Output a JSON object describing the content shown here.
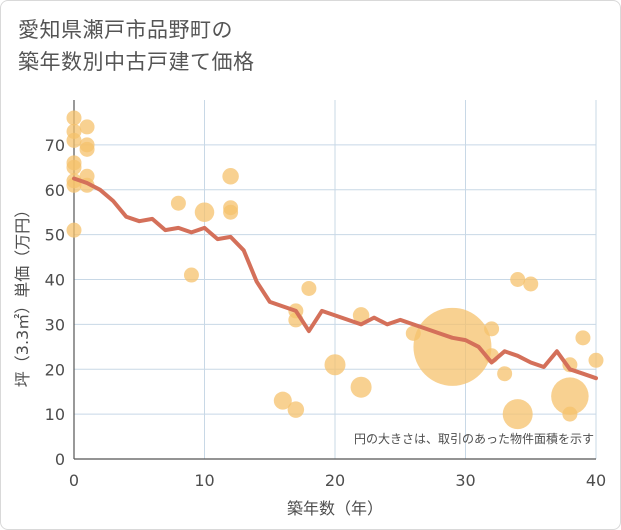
{
  "title_line1": "愛知県瀬戸市品野町の",
  "title_line2": "築年数別中古戸建て価格",
  "chart_data": {
    "type": "scatter",
    "title": "愛知県瀬戸市品野町の築年数別中古戸建て価格",
    "xlabel": "築年数（年）",
    "ylabel": "坪（3.3㎡）単価（万円）",
    "xlim": [
      0,
      40
    ],
    "ylim": [
      0,
      80
    ],
    "xticks": [
      0,
      10,
      20,
      30,
      40
    ],
    "yticks": [
      0,
      10,
      20,
      30,
      40,
      50,
      60,
      70
    ],
    "grid": true,
    "note": "円の大きさは、取引のあった物件面積を示す",
    "colors": {
      "bubble": "#f5c16c",
      "line": "#d4705a",
      "grid": "#c8d8e6"
    },
    "bubbles": [
      {
        "x": 0,
        "y": 76,
        "s": 1
      },
      {
        "x": 0,
        "y": 73,
        "s": 1
      },
      {
        "x": 0,
        "y": 71,
        "s": 1
      },
      {
        "x": 0,
        "y": 66,
        "s": 1
      },
      {
        "x": 0,
        "y": 65,
        "s": 1
      },
      {
        "x": 0,
        "y": 62,
        "s": 1
      },
      {
        "x": 0,
        "y": 61,
        "s": 1
      },
      {
        "x": 0,
        "y": 51,
        "s": 1
      },
      {
        "x": 1,
        "y": 74,
        "s": 1
      },
      {
        "x": 1,
        "y": 70,
        "s": 1
      },
      {
        "x": 1,
        "y": 69,
        "s": 1
      },
      {
        "x": 1,
        "y": 63,
        "s": 1
      },
      {
        "x": 1,
        "y": 61,
        "s": 1
      },
      {
        "x": 8,
        "y": 57,
        "s": 1
      },
      {
        "x": 9,
        "y": 41,
        "s": 1
      },
      {
        "x": 10,
        "y": 55,
        "s": 1.3
      },
      {
        "x": 12,
        "y": 63,
        "s": 1.1
      },
      {
        "x": 12,
        "y": 56,
        "s": 1
      },
      {
        "x": 12,
        "y": 55,
        "s": 1
      },
      {
        "x": 16,
        "y": 13,
        "s": 1.2
      },
      {
        "x": 17,
        "y": 33,
        "s": 1
      },
      {
        "x": 17,
        "y": 31,
        "s": 1
      },
      {
        "x": 17,
        "y": 11,
        "s": 1.1
      },
      {
        "x": 18,
        "y": 38,
        "s": 1
      },
      {
        "x": 20,
        "y": 21,
        "s": 1.4
      },
      {
        "x": 22,
        "y": 32,
        "s": 1.1
      },
      {
        "x": 22,
        "y": 16,
        "s": 1.4
      },
      {
        "x": 26,
        "y": 28,
        "s": 1
      },
      {
        "x": 29,
        "y": 25,
        "s": 5.2
      },
      {
        "x": 32,
        "y": 29,
        "s": 1
      },
      {
        "x": 32,
        "y": 23,
        "s": 1
      },
      {
        "x": 33,
        "y": 19,
        "s": 1
      },
      {
        "x": 34,
        "y": 40,
        "s": 1
      },
      {
        "x": 34,
        "y": 10,
        "s": 2
      },
      {
        "x": 35,
        "y": 39,
        "s": 1
      },
      {
        "x": 38,
        "y": 21,
        "s": 1
      },
      {
        "x": 38,
        "y": 14,
        "s": 2.5
      },
      {
        "x": 38,
        "y": 10,
        "s": 1
      },
      {
        "x": 39,
        "y": 27,
        "s": 1
      },
      {
        "x": 40,
        "y": 22,
        "s": 1
      }
    ],
    "line": {
      "x": [
        0,
        1,
        2,
        3,
        4,
        5,
        6,
        7,
        8,
        9,
        10,
        11,
        12,
        13,
        14,
        15,
        16,
        17,
        18,
        19,
        20,
        21,
        22,
        23,
        24,
        25,
        26,
        27,
        28,
        29,
        30,
        31,
        32,
        33,
        34,
        35,
        36,
        37,
        38,
        39,
        40
      ],
      "y": [
        62.5,
        61.5,
        60,
        57.5,
        54,
        53,
        53.5,
        51,
        51.5,
        50.5,
        51.5,
        49,
        49.5,
        46.5,
        39.5,
        35,
        34,
        33,
        28.5,
        33,
        32,
        31,
        30,
        31.5,
        30,
        31,
        30,
        29,
        28,
        27,
        26.5,
        25,
        21.5,
        24,
        23,
        21.5,
        20.5,
        24,
        20,
        19,
        18
      ]
    }
  }
}
